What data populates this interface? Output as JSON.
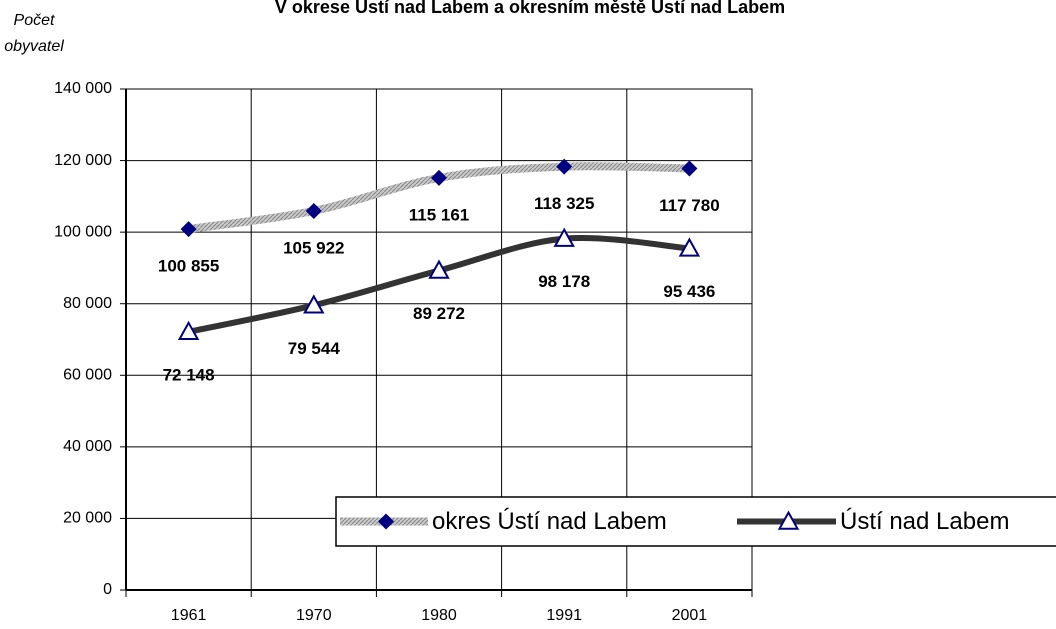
{
  "chart_data": {
    "type": "line",
    "title": "V okrese  Ústí nad Labem a okresním městě Ústí nad Labem",
    "y_label": "Počet obyvatel",
    "categories": [
      "1961",
      "1970",
      "1980",
      "1991",
      "2001"
    ],
    "series": [
      {
        "name": "okres Ústí nad Labem",
        "color": "#000080",
        "line_color": "#b0b0b0",
        "values": [
          100855,
          105922,
          115161,
          118325,
          117780
        ],
        "value_labels": [
          "100 855",
          "105 922",
          "115 161",
          "118 325",
          "117 780"
        ]
      },
      {
        "name": "Ústí nad Labem",
        "color": "#000080",
        "line_color": "#333333",
        "values": [
          72148,
          79544,
          89272,
          98178,
          95436
        ],
        "value_labels": [
          "72 148",
          "79 544",
          "89 272",
          "98 178",
          "95 436"
        ]
      }
    ],
    "ylim": [
      0,
      140000
    ],
    "yticks": [
      {
        "value": 0,
        "label": "0"
      },
      {
        "value": 20000,
        "label": "20 000"
      },
      {
        "value": 40000,
        "label": "40 000"
      },
      {
        "value": 60000,
        "label": "60 000"
      },
      {
        "value": 80000,
        "label": "80 000"
      },
      {
        "value": 100000,
        "label": "100 000"
      },
      {
        "value": 120000,
        "label": "120 000"
      },
      {
        "value": 140000,
        "label": "140 000"
      }
    ],
    "grid": true,
    "legend": "lower right"
  }
}
